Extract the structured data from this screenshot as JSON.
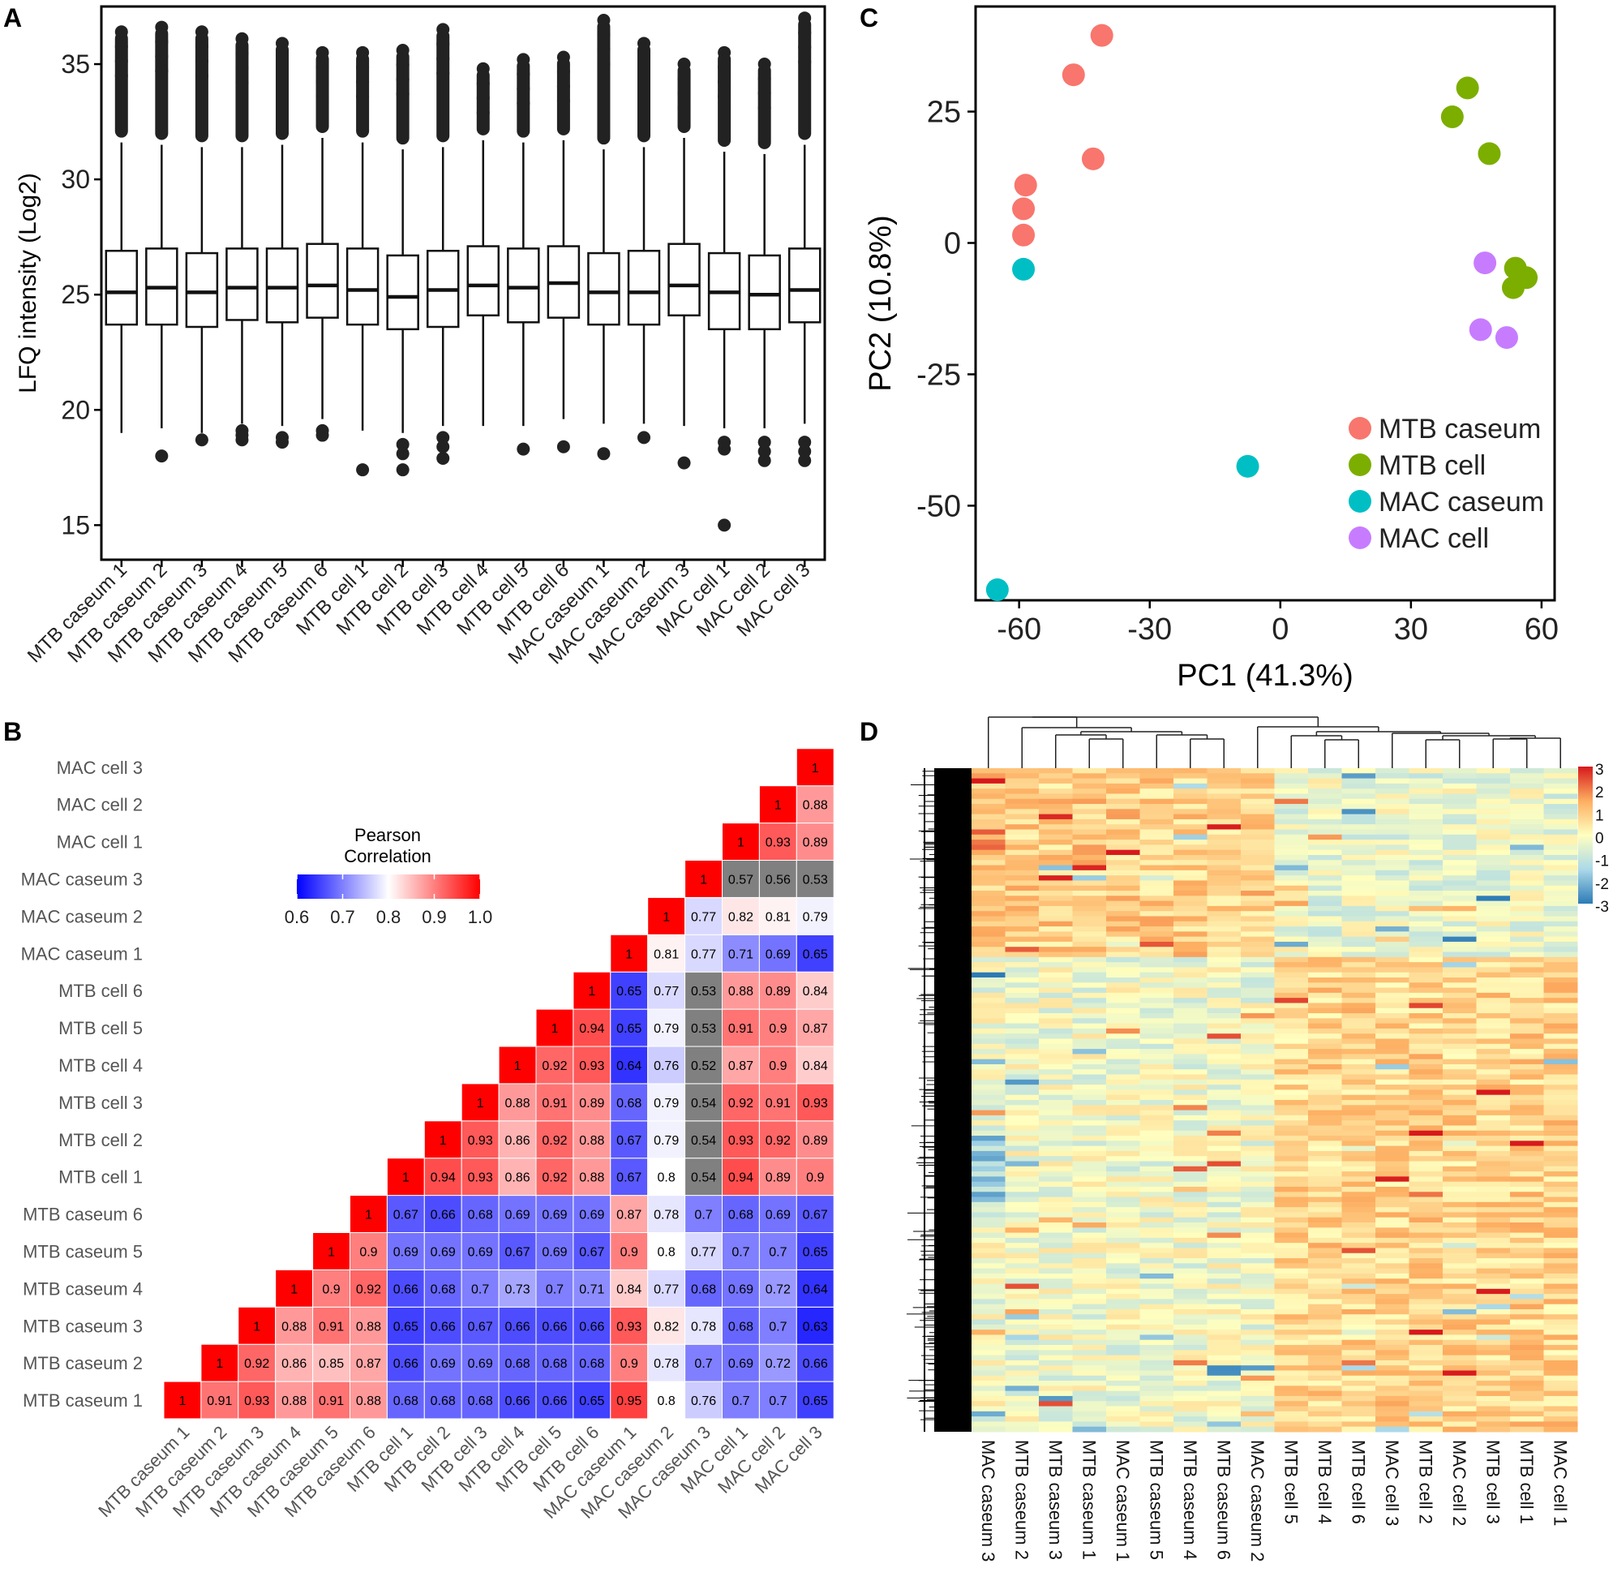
{
  "panels": {
    "a": "A",
    "b": "B",
    "c": "C",
    "d": "D"
  },
  "samples": [
    "MTB caseum 1",
    "MTB caseum 2",
    "MTB caseum 3",
    "MTB caseum 4",
    "MTB caseum 5",
    "MTB caseum 6",
    "MTB cell 1",
    "MTB cell 2",
    "MTB cell 3",
    "MTB cell 4",
    "MTB cell 5",
    "MTB cell 6",
    "MAC caseum 1",
    "MAC caseum 2",
    "MAC caseum 3",
    "MAC cell 1",
    "MAC cell 2",
    "MAC cell 3"
  ],
  "colors": {
    "mtb_caseum": "#F8766D",
    "mtb_cell": "#7CAE00",
    "mac_caseum": "#00BFC4",
    "mac_cell": "#C77CFF",
    "heat_high": "#D7191C",
    "heat_mid": "#FFFFBF",
    "heat_low": "#2C7BB6",
    "corr_low": "#0000FF",
    "corr_mid": "#FFFFFF",
    "corr_high": "#FF0000",
    "corr_na": "#808080"
  },
  "chart_data": [
    {
      "id": "A",
      "type": "box",
      "title": "",
      "xlabel": "",
      "ylabel": "LFQ intensity (Log2)",
      "ylim": [
        13.5,
        37.5
      ],
      "yticks": [
        15,
        20,
        25,
        30,
        35
      ],
      "categories": [
        "MTB caseum 1",
        "MTB caseum 2",
        "MTB caseum 3",
        "MTB caseum 4",
        "MTB caseum 5",
        "MTB caseum 6",
        "MTB cell 1",
        "MTB cell 2",
        "MTB cell 3",
        "MTB cell 4",
        "MTB cell 5",
        "MTB cell 6",
        "MAC caseum 1",
        "MAC caseum 2",
        "MAC caseum 3",
        "MAC cell 1",
        "MAC cell 2",
        "MAC cell 3"
      ],
      "boxes": [
        {
          "q1": 23.7,
          "median": 25.1,
          "q3": 26.9,
          "wlo": 19.0,
          "whi": 31.6,
          "out_hi_top": 36.4,
          "out_lo": []
        },
        {
          "q1": 23.7,
          "median": 25.3,
          "q3": 27.0,
          "wlo": 19.2,
          "whi": 31.5,
          "out_hi_top": 36.6,
          "out_lo": [
            18.0
          ]
        },
        {
          "q1": 23.6,
          "median": 25.1,
          "q3": 26.8,
          "wlo": 19.0,
          "whi": 31.4,
          "out_hi_top": 36.4,
          "out_lo": [
            18.7
          ]
        },
        {
          "q1": 23.9,
          "median": 25.3,
          "q3": 27.0,
          "wlo": 19.4,
          "whi": 31.4,
          "out_hi_top": 36.1,
          "out_lo": [
            18.7,
            18.9,
            19.1
          ]
        },
        {
          "q1": 23.8,
          "median": 25.3,
          "q3": 27.0,
          "wlo": 19.3,
          "whi": 31.5,
          "out_hi_top": 35.9,
          "out_lo": [
            18.6,
            18.8
          ]
        },
        {
          "q1": 24.0,
          "median": 25.4,
          "q3": 27.2,
          "wlo": 19.6,
          "whi": 31.8,
          "out_hi_top": 35.5,
          "out_lo": [
            18.9,
            19.1
          ]
        },
        {
          "q1": 23.7,
          "median": 25.2,
          "q3": 27.0,
          "wlo": 19.1,
          "whi": 31.6,
          "out_hi_top": 35.5,
          "out_lo": [
            17.4
          ]
        },
        {
          "q1": 23.5,
          "median": 24.9,
          "q3": 26.7,
          "wlo": 19.0,
          "whi": 31.3,
          "out_hi_top": 35.6,
          "out_lo": [
            17.4,
            18.1,
            18.5
          ]
        },
        {
          "q1": 23.6,
          "median": 25.2,
          "q3": 26.9,
          "wlo": 19.3,
          "whi": 31.4,
          "out_hi_top": 36.5,
          "out_lo": [
            17.9,
            18.4,
            18.8
          ]
        },
        {
          "q1": 24.1,
          "median": 25.4,
          "q3": 27.1,
          "wlo": 19.3,
          "whi": 31.7,
          "out_hi_top": 34.8,
          "out_lo": []
        },
        {
          "q1": 23.8,
          "median": 25.3,
          "q3": 27.0,
          "wlo": 19.3,
          "whi": 31.6,
          "out_hi_top": 35.2,
          "out_lo": [
            18.3
          ]
        },
        {
          "q1": 24.0,
          "median": 25.5,
          "q3": 27.1,
          "wlo": 19.6,
          "whi": 31.7,
          "out_hi_top": 35.3,
          "out_lo": [
            18.4
          ]
        },
        {
          "q1": 23.7,
          "median": 25.1,
          "q3": 26.8,
          "wlo": 19.4,
          "whi": 31.3,
          "out_hi_top": 36.9,
          "out_lo": [
            18.1
          ]
        },
        {
          "q1": 23.7,
          "median": 25.1,
          "q3": 26.9,
          "wlo": 19.4,
          "whi": 31.4,
          "out_hi_top": 35.9,
          "out_lo": [
            18.8
          ]
        },
        {
          "q1": 24.1,
          "median": 25.4,
          "q3": 27.2,
          "wlo": 19.3,
          "whi": 31.8,
          "out_hi_top": 35.0,
          "out_lo": [
            17.7
          ]
        },
        {
          "q1": 23.5,
          "median": 25.1,
          "q3": 26.8,
          "wlo": 19.2,
          "whi": 31.2,
          "out_hi_top": 35.5,
          "out_lo": [
            15.0,
            18.3,
            18.6
          ]
        },
        {
          "q1": 23.5,
          "median": 25.0,
          "q3": 26.7,
          "wlo": 19.2,
          "whi": 31.1,
          "out_hi_top": 35.0,
          "out_lo": [
            17.8,
            18.2,
            18.6
          ]
        },
        {
          "q1": 23.8,
          "median": 25.2,
          "q3": 27.0,
          "wlo": 19.4,
          "whi": 31.5,
          "out_hi_top": 37.0,
          "out_lo": [
            17.8,
            18.2,
            18.6
          ]
        }
      ]
    },
    {
      "id": "B",
      "type": "heatmap",
      "title": "Pearson Correlation",
      "legend_ticks": [
        0.6,
        0.7,
        0.8,
        0.9,
        1.0
      ],
      "legend_tick_labels": [
        "0.6",
        "0.7",
        "0.8",
        "0.9",
        "1.0"
      ],
      "range": [
        0.6,
        1.0
      ],
      "note": "lower-left triangle; values below 0.6 drawn grey",
      "rows": [
        [
          1
        ],
        [
          0.91,
          1
        ],
        [
          0.93,
          0.92,
          1
        ],
        [
          0.88,
          0.86,
          0.88,
          1
        ],
        [
          0.91,
          0.85,
          0.91,
          0.9,
          1
        ],
        [
          0.88,
          0.87,
          0.88,
          0.92,
          0.9,
          1
        ],
        [
          0.68,
          0.66,
          0.65,
          0.66,
          0.69,
          0.67,
          1
        ],
        [
          0.68,
          0.69,
          0.66,
          0.68,
          0.69,
          0.66,
          0.94,
          1
        ],
        [
          0.68,
          0.69,
          0.67,
          0.7,
          0.69,
          0.68,
          0.93,
          0.93,
          1
        ],
        [
          0.66,
          0.68,
          0.66,
          0.73,
          0.67,
          0.69,
          0.86,
          0.86,
          0.88,
          1
        ],
        [
          0.66,
          0.68,
          0.66,
          0.7,
          0.69,
          0.69,
          0.92,
          0.92,
          0.91,
          0.92,
          1
        ],
        [
          0.65,
          0.68,
          0.66,
          0.71,
          0.67,
          0.69,
          0.88,
          0.88,
          0.89,
          0.93,
          0.94,
          1
        ],
        [
          0.95,
          0.9,
          0.93,
          0.84,
          0.9,
          0.87,
          0.67,
          0.67,
          0.68,
          0.64,
          0.65,
          0.65,
          1
        ],
        [
          0.8,
          0.78,
          0.82,
          0.77,
          0.8,
          0.78,
          0.8,
          0.79,
          0.79,
          0.76,
          0.79,
          0.77,
          0.81,
          1
        ],
        [
          0.76,
          0.7,
          0.78,
          0.68,
          0.77,
          0.7,
          0.54,
          0.54,
          0.54,
          0.52,
          0.53,
          0.53,
          0.77,
          0.77,
          1
        ],
        [
          0.7,
          0.69,
          0.68,
          0.69,
          0.7,
          0.68,
          0.94,
          0.93,
          0.92,
          0.87,
          0.91,
          0.88,
          0.71,
          0.82,
          0.57,
          1
        ],
        [
          0.7,
          0.72,
          0.7,
          0.72,
          0.7,
          0.69,
          0.89,
          0.92,
          0.91,
          0.9,
          0.9,
          0.89,
          0.69,
          0.81,
          0.56,
          0.93,
          1
        ],
        [
          0.65,
          0.66,
          0.63,
          0.64,
          0.65,
          0.67,
          0.9,
          0.89,
          0.93,
          0.84,
          0.87,
          0.84,
          0.65,
          0.79,
          0.53,
          0.89,
          0.88,
          1
        ]
      ]
    },
    {
      "id": "C",
      "type": "scatter",
      "xlabel": "PC1 (41.3%)",
      "ylabel": "PC2 (10.8%)",
      "xlim": [
        -70,
        63
      ],
      "ylim": [
        -68,
        45
      ],
      "xticks": [
        -60,
        -30,
        0,
        30,
        60
      ],
      "yticks": [
        -50,
        -25,
        0,
        25
      ],
      "series": [
        {
          "name": "MTB caseum",
          "color": "#F8766D",
          "points": [
            [
              -41,
              39.5
            ],
            [
              -47.5,
              32
            ],
            [
              -43,
              16
            ],
            [
              -58.5,
              11
            ],
            [
              -59,
              6.5
            ],
            [
              -59,
              1.5
            ]
          ]
        },
        {
          "name": "MTB cell",
          "color": "#7CAE00",
          "points": [
            [
              43,
              29.5
            ],
            [
              39.5,
              24
            ],
            [
              48,
              17
            ],
            [
              54,
              -4.8
            ],
            [
              56.5,
              -6.6
            ],
            [
              53.5,
              -8.5
            ]
          ]
        },
        {
          "name": "MAC caseum",
          "color": "#00BFC4",
          "points": [
            [
              -59,
              -5
            ],
            [
              -7.5,
              -42.5
            ],
            [
              -65,
              -66
            ]
          ]
        },
        {
          "name": "MAC cell",
          "color": "#C77CFF",
          "points": [
            [
              47,
              -3.8
            ],
            [
              46,
              -16.5
            ],
            [
              52,
              -18
            ]
          ]
        }
      ],
      "legend_position": "bottom-right"
    },
    {
      "id": "D",
      "type": "heatmap",
      "columns": [
        "MAC caseum 3",
        "MTB caseum 2",
        "MTB caseum 3",
        "MTB caseum 1",
        "MAC caseum 1",
        "MTB caseum 5",
        "MTB caseum 4",
        "MTB caseum 6",
        "MAC caseum 2",
        "MTB cell 5",
        "MTB cell 4",
        "MTB cell 6",
        "MAC cell 3",
        "MTB cell 2",
        "MAC cell 2",
        "MTB cell 3",
        "MTB cell 1",
        "MAC cell 1"
      ],
      "color_scale_ticks": [
        3,
        2,
        1,
        0,
        -1,
        -2,
        -3
      ],
      "color_scale_tick_labels": [
        "3",
        "2",
        "1",
        "0",
        "-1",
        "-2",
        "-3"
      ],
      "range": [
        -3,
        3
      ],
      "note": "row-clustered z-scored protein intensities with column dendrogram"
    }
  ]
}
